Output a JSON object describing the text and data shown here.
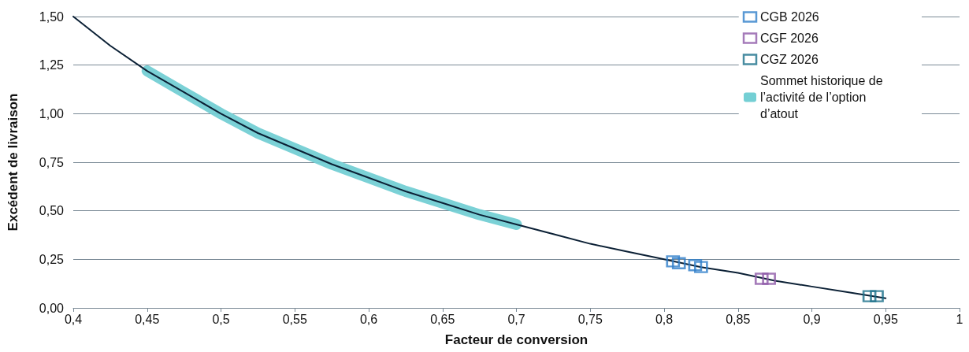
{
  "chart_data": {
    "type": "line",
    "xlabel": "Facteur de conversion",
    "ylabel": "Excédent de livraison",
    "xlim": [
      0.4,
      1
    ],
    "xticks": [
      {
        "value": 0.4,
        "label": "0,4"
      },
      {
        "value": 0.45,
        "label": "0,45"
      },
      {
        "value": 0.5,
        "label": "0,5"
      },
      {
        "value": 0.55,
        "label": "0,55"
      },
      {
        "value": 0.6,
        "label": "0,6"
      },
      {
        "value": 0.65,
        "label": "0,65"
      },
      {
        "value": 0.7,
        "label": "0,7"
      },
      {
        "value": 0.75,
        "label": "0,75"
      },
      {
        "value": 0.8,
        "label": "0,8"
      },
      {
        "value": 0.85,
        "label": "0,85"
      },
      {
        "value": 0.9,
        "label": "0,9"
      },
      {
        "value": 0.95,
        "label": "0,95"
      },
      {
        "value": 1,
        "label": "1"
      }
    ],
    "ylim": [
      0,
      1.5
    ],
    "yticks": [
      {
        "value": 0,
        "label": "0,00"
      },
      {
        "value": 0.25,
        "label": "0,25"
      },
      {
        "value": 0.5,
        "label": "0,50"
      },
      {
        "value": 0.75,
        "label": "0,75"
      },
      {
        "value": 1,
        "label": "1,00"
      },
      {
        "value": 1.25,
        "label": "1,25"
      },
      {
        "value": 1.5,
        "label": "1,50"
      }
    ],
    "grid": "y",
    "legend": "top right",
    "marker": "none",
    "line_style": "solid",
    "series": [
      {
        "color": "#0b2035",
        "x": [
          0.4,
          0.425,
          0.45,
          0.475,
          0.5,
          0.525,
          0.55,
          0.575,
          0.6,
          0.625,
          0.65,
          0.675,
          0.7,
          0.725,
          0.75,
          0.775,
          0.8,
          0.825,
          0.85,
          0.875,
          0.9,
          0.925,
          0.95
        ],
        "values": [
          1.5,
          1.35,
          1.22,
          1.11,
          1.0,
          0.9,
          0.82,
          0.74,
          0.67,
          0.6,
          0.54,
          0.48,
          0.43,
          0.38,
          0.33,
          0.29,
          0.25,
          0.21,
          0.18,
          0.14,
          0.11,
          0.08,
          0.05
        ]
      },
      {
        "type": "scatter",
        "marker": "square",
        "color": "#2f7ec9",
        "name": "CGB 2026",
        "x": [
          0.806,
          0.81,
          0.821,
          0.825
        ],
        "values": [
          0.24,
          0.23,
          0.22,
          0.21
        ]
      },
      {
        "type": "scatter",
        "marker": "square",
        "color": "#8e5aa8",
        "name": "CGF 2026",
        "x": [
          0.866,
          0.871
        ],
        "values": [
          0.15,
          0.15
        ]
      },
      {
        "type": "scatter",
        "marker": "square",
        "color": "#1a6f8a",
        "name": "CGZ 2026",
        "x": [
          0.939,
          0.944
        ],
        "values": [
          0.06,
          0.06
        ]
      },
      {
        "color": "#74cfd4",
        "name": "Sommet historique de l’activité de l’option d’atout",
        "x": [
          0.45,
          0.475,
          0.5,
          0.525,
          0.55,
          0.575,
          0.6,
          0.625,
          0.65,
          0.675,
          0.7
        ],
        "values": [
          1.22,
          1.11,
          1.0,
          0.9,
          0.82,
          0.74,
          0.67,
          0.6,
          0.54,
          0.48,
          0.43
        ]
      }
    ]
  }
}
